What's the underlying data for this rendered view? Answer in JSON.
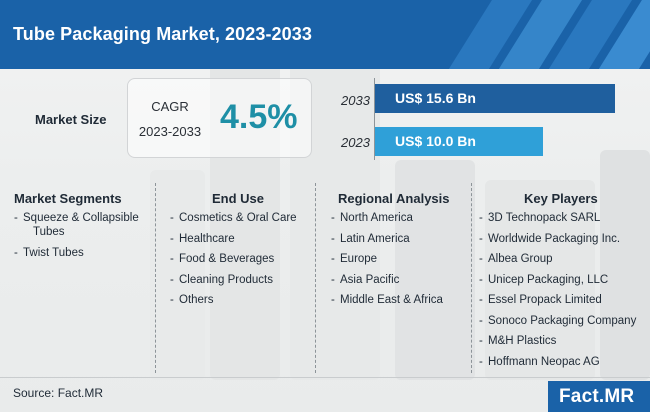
{
  "header": {
    "title": "Tube Packaging Market, 2023-2033"
  },
  "market_size": {
    "label": "Market Size",
    "cagr_label": "CAGR",
    "cagr_period": "2023-2033",
    "cagr_value": "4.5%",
    "bars": [
      {
        "year": "2033",
        "value_label": "US$ 15.6 Bn",
        "value": 15.6,
        "color": "#1f5f9e"
      },
      {
        "year": "2023",
        "value_label": "US$ 10.0 Bn",
        "value": 10.0,
        "color": "#2fa0d8"
      }
    ]
  },
  "columns": [
    {
      "title": "Market Segments",
      "items": [
        [
          "Squeeze & Collapsible",
          "Tubes"
        ],
        [
          "Twist Tubes"
        ]
      ]
    },
    {
      "title": "End Use",
      "items": [
        [
          "Cosmetics & Oral Care"
        ],
        [
          "Healthcare"
        ],
        [
          "Food & Beverages"
        ],
        [
          "Cleaning Products"
        ],
        [
          "Others"
        ]
      ]
    },
    {
      "title": "Regional Analysis",
      "items": [
        [
          "North America"
        ],
        [
          "Latin America"
        ],
        [
          "Europe"
        ],
        [
          "Asia Pacific"
        ],
        [
          "Middle East & Africa"
        ]
      ]
    },
    {
      "title": "Key Players",
      "items": [
        [
          "3D Technopack SARL"
        ],
        [
          "Worldwide Packaging Inc."
        ],
        [
          "Albea Group"
        ],
        [
          "Unicep Packaging, LLC"
        ],
        [
          "Essel Propack Limited"
        ],
        [
          "Sonoco Packaging Company"
        ],
        [
          "M&H Plastics"
        ],
        [
          "Hoffmann Neopac AG"
        ]
      ]
    }
  ],
  "footer": {
    "source": "Source: Fact.MR",
    "logo_text": "Fact.MR"
  },
  "colors": {
    "brand_blue": "#1a62a8",
    "cagr_teal": "#1e8fa6"
  }
}
